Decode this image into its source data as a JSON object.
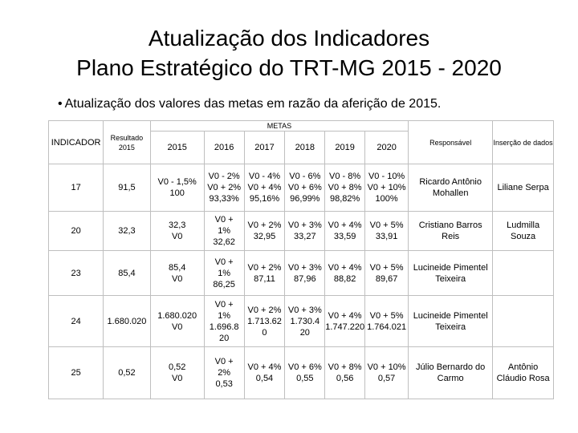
{
  "title_line1": "Atualização dos Indicadores",
  "title_line2": "Plano Estratégico do TRT-MG 2015 - 2020",
  "bullet": "Atualização dos valores das metas em razão da aferição de 2015.",
  "table": {
    "col_indicador": "INDICADOR",
    "col_resultado": "Resultado 2015",
    "col_metas": "METAS",
    "col_responsavel": "Responsável",
    "col_insercao": "Inserção de dados",
    "years": [
      "2015",
      "2016",
      "2017",
      "2018",
      "2019",
      "2020"
    ],
    "rows": [
      {
        "indicador": "17",
        "resultado": "91,5",
        "y2015": [
          "V0 - 1,5%",
          "100"
        ],
        "y2016": [
          "V0 - 2%",
          "V0 + 2%",
          "93,33%"
        ],
        "y2017": [
          "V0 - 4%",
          "V0 + 4%",
          "95,16%"
        ],
        "y2018": [
          "V0 - 6%",
          "V0 + 6%",
          "96,99%"
        ],
        "y2019": [
          "V0 - 8%",
          "V0 + 8%",
          "98,82%"
        ],
        "y2020": [
          "V0 - 10%",
          "V0 + 10%",
          "100%"
        ],
        "responsavel": [
          "Ricardo Antônio",
          "Mohallen"
        ],
        "insercao": "Liliane Serpa"
      },
      {
        "indicador": "20",
        "resultado": "32,3",
        "y2015": [
          "32,3",
          "V0"
        ],
        "y2016": [
          "V0 +",
          "1%",
          "32,62"
        ],
        "y2017": [
          "V0 + 2%",
          "32,95"
        ],
        "y2018": [
          "V0 + 3%",
          "33,27"
        ],
        "y2019": [
          "V0 + 4%",
          "33,59"
        ],
        "y2020": [
          "V0 + 5%",
          "33,91"
        ],
        "responsavel": [
          "Cristiano Barros",
          "Reis"
        ],
        "insercao": "Ludmilla Souza"
      },
      {
        "indicador": "23",
        "resultado": "85,4",
        "y2015": [
          "85,4",
          "V0"
        ],
        "y2016": [
          "V0 +",
          "1%",
          "86,25"
        ],
        "y2017": [
          "V0 + 2%",
          "87,11"
        ],
        "y2018": [
          "V0 + 3%",
          "87,96"
        ],
        "y2019": [
          "V0 + 4%",
          "88,82"
        ],
        "y2020": [
          "V0 + 5%",
          "89,67"
        ],
        "responsavel": [
          "Lucineide Pimentel",
          "Teixeira"
        ],
        "insercao": ""
      },
      {
        "indicador": "24",
        "resultado": "1.680.020",
        "y2015": [
          "1.680.020",
          "V0"
        ],
        "y2016": [
          "V0 +",
          "1%",
          "1.696.8",
          "20"
        ],
        "y2017": [
          "V0 + 2%",
          "1.713.62",
          "0"
        ],
        "y2018": [
          "V0 + 3%",
          "1.730.4",
          "20"
        ],
        "y2019": [
          "V0 + 4%",
          "1.747.220"
        ],
        "y2020": [
          "V0 + 5%",
          "1.764.021"
        ],
        "responsavel": [
          "Lucineide Pimentel",
          "Teixeira"
        ],
        "insercao": ""
      },
      {
        "indicador": "25",
        "resultado": "0,52",
        "y2015": [
          "0,52",
          "V0"
        ],
        "y2016": [
          "V0 +",
          "2%",
          "0,53"
        ],
        "y2017": [
          "V0 + 4%",
          "0,54"
        ],
        "y2018": [
          "V0 + 6%",
          "0,55"
        ],
        "y2019": [
          "V0 + 8%",
          "0,56"
        ],
        "y2020": [
          "V0 + 10%",
          "0,57"
        ],
        "responsavel": [
          "Júlio Bernardo do",
          "Carmo"
        ],
        "insercao": "Antônio Cláudio Rosa"
      }
    ]
  }
}
